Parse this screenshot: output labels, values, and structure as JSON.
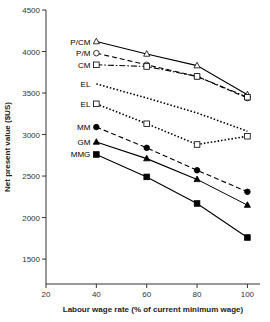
{
  "chart_data": {
    "type": "line",
    "x": [
      40,
      60,
      80,
      100
    ],
    "color": "black",
    "series": [
      {
        "name": "P/CM",
        "values": [
          4120,
          3970,
          3830,
          3480
        ],
        "marker": "triangle-open",
        "line_style": "solid"
      },
      {
        "name": "P/M",
        "values": [
          3980,
          3840,
          3700,
          3440
        ],
        "marker": "circle-open",
        "line_style": "dashed"
      },
      {
        "name": "CM",
        "values": [
          3840,
          3820,
          3700,
          3450
        ],
        "marker": "square-open",
        "line_style": "dashdot"
      },
      {
        "name": "EL",
        "values": [
          3610,
          3440,
          3260,
          3040
        ],
        "marker": "none",
        "line_style": "dotted"
      },
      {
        "name": "EL",
        "values": [
          3370,
          3130,
          2880,
          2980
        ],
        "marker": "square-open",
        "line_style": "dotted"
      },
      {
        "name": "MM",
        "values": [
          3090,
          2840,
          2570,
          2310
        ],
        "marker": "circle-filled",
        "line_style": "dashed"
      },
      {
        "name": "GM",
        "values": [
          2910,
          2710,
          2460,
          2150
        ],
        "marker": "triangle-filled",
        "line_style": "solid"
      },
      {
        "name": "MMG",
        "values": [
          2760,
          2490,
          2170,
          1760
        ],
        "marker": "square-filled",
        "line_style": "solid"
      }
    ],
    "xlabel": "Labour wage rate (% of current minimum wage)",
    "ylabel": "Net present value ($US)",
    "xlim": [
      20,
      105
    ],
    "ylim": [
      1200,
      4500
    ],
    "xticks": [
      20,
      40,
      60,
      80,
      100
    ],
    "yticks": [
      1500,
      2000,
      2500,
      3000,
      3500,
      4000,
      4500
    ],
    "grid": false
  }
}
